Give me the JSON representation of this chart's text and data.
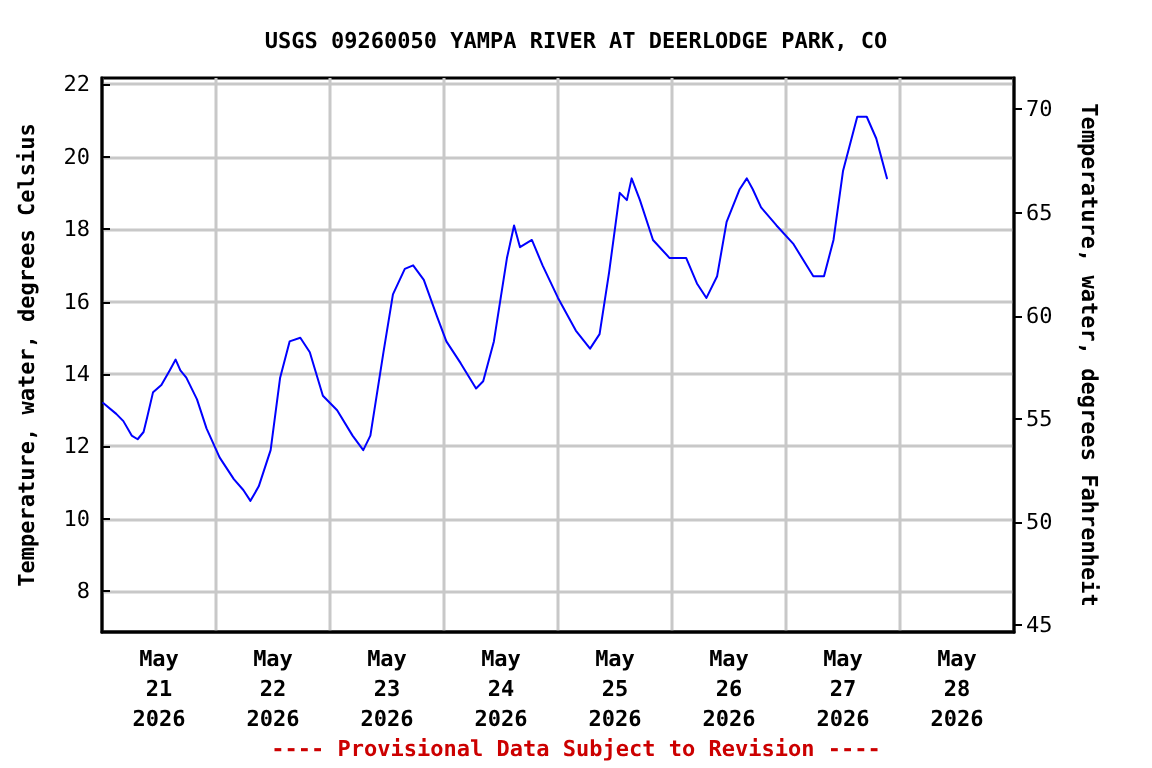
{
  "chart_data": {
    "type": "line",
    "title": "USGS 09260050 YAMPA RIVER AT DEERLODGE PARK, CO",
    "ylabel": "Temperature, water, degrees Celsius",
    "y2label": "Temperature, water, degrees Fahrenheit",
    "annotations": [
      "---- Provisional Data Subject to Revision ----"
    ],
    "x": [
      "2026-05-21T00:15",
      "2026-05-21T03:00",
      "2026-05-21T04:30",
      "2026-05-21T06:15",
      "2026-05-21T07:30",
      "2026-05-21T08:45",
      "2026-05-21T09:30",
      "2026-05-21T10:45",
      "2026-05-21T12:30",
      "2026-05-21T14:15",
      "2026-05-21T15:30",
      "2026-05-21T16:30",
      "2026-05-21T17:45",
      "2026-05-21T20:00",
      "2026-05-21T22:00",
      "2026-05-22T00:45",
      "2026-05-22T03:45",
      "2026-05-22T05:45",
      "2026-05-22T07:15",
      "2026-05-22T09:00",
      "2026-05-22T11:30",
      "2026-05-22T13:30",
      "2026-05-22T15:30",
      "2026-05-22T17:45",
      "2026-05-22T19:45",
      "2026-05-22T22:30",
      "2026-05-23T01:30",
      "2026-05-23T04:45",
      "2026-05-23T07:00",
      "2026-05-23T08:30",
      "2026-05-23T11:15",
      "2026-05-23T13:15",
      "2026-05-23T15:45",
      "2026-05-23T17:30",
      "2026-05-23T19:45",
      "2026-05-23T22:30",
      "2026-05-24T00:30",
      "2026-05-24T03:30",
      "2026-05-24T06:45",
      "2026-05-24T08:15",
      "2026-05-24T10:30",
      "2026-05-24T13:15",
      "2026-05-24T14:45",
      "2026-05-24T16:00",
      "2026-05-24T18:30",
      "2026-05-24T20:45",
      "2026-05-25T00:00",
      "2026-05-25T03:45",
      "2026-05-25T06:45",
      "2026-05-25T08:45",
      "2026-05-25T10:45",
      "2026-05-25T13:00",
      "2026-05-25T14:30",
      "2026-05-25T15:30",
      "2026-05-25T17:15",
      "2026-05-25T20:00",
      "2026-05-25T23:30",
      "2026-05-26T03:00",
      "2026-05-26T05:15",
      "2026-05-26T07:15",
      "2026-05-26T09:30",
      "2026-05-26T11:30",
      "2026-05-26T14:15",
      "2026-05-26T15:45",
      "2026-05-26T17:00",
      "2026-05-26T18:45",
      "2026-05-26T22:00",
      "2026-05-27T01:30",
      "2026-05-27T05:45",
      "2026-05-27T08:00",
      "2026-05-27T10:00",
      "2026-05-27T12:00",
      "2026-05-27T15:00",
      "2026-05-27T17:00",
      "2026-05-27T19:00",
      "2026-05-27T21:15"
    ],
    "series": [
      {
        "color": "#0000ff",
        "values": [
          13.2,
          12.9,
          12.7,
          12.3,
          12.2,
          12.4,
          12.8,
          13.5,
          13.7,
          14.1,
          14.4,
          14.1,
          13.9,
          13.3,
          12.5,
          11.7,
          11.1,
          10.8,
          10.5,
          10.9,
          11.9,
          13.9,
          14.9,
          15.0,
          14.6,
          13.4,
          13.0,
          12.3,
          11.9,
          12.3,
          14.6,
          16.2,
          16.9,
          17.0,
          16.6,
          15.6,
          14.9,
          14.3,
          13.6,
          13.8,
          14.9,
          17.2,
          18.1,
          17.5,
          17.7,
          17.0,
          16.1,
          15.2,
          14.7,
          15.1,
          16.8,
          19.0,
          18.8,
          19.4,
          18.8,
          17.7,
          17.2,
          17.2,
          16.5,
          16.1,
          16.7,
          18.2,
          19.1,
          19.4,
          19.1,
          18.6,
          18.1,
          17.6,
          16.7,
          16.7,
          17.7,
          19.6,
          21.1,
          21.1,
          20.5,
          19.4
        ]
      }
    ],
    "xlim": [
      "2026-05-21T00:00",
      "2026-05-29T00:00"
    ],
    "xticks": [
      {
        "value": "2026-05-21T00:00",
        "label": null
      },
      {
        "value": "2026-05-21T12:00",
        "label": "May\n21\n2026"
      },
      {
        "value": "2026-05-22T00:00",
        "label": null
      },
      {
        "value": "2026-05-22T12:00",
        "label": "May\n22\n2026"
      },
      {
        "value": "2026-05-23T00:00",
        "label": null
      },
      {
        "value": "2026-05-23T12:00",
        "label": "May\n23\n2026"
      },
      {
        "value": "2026-05-24T00:00",
        "label": null
      },
      {
        "value": "2026-05-24T12:00",
        "label": "May\n24\n2026"
      },
      {
        "value": "2026-05-25T00:00",
        "label": null
      },
      {
        "value": "2026-05-25T12:00",
        "label": "May\n25\n2026"
      },
      {
        "value": "2026-05-26T00:00",
        "label": null
      },
      {
        "value": "2026-05-26T12:00",
        "label": "May\n26\n2026"
      },
      {
        "value": "2026-05-27T00:00",
        "label": null
      },
      {
        "value": "2026-05-27T12:00",
        "label": "May\n27\n2026"
      },
      {
        "value": "2026-05-28T00:00",
        "label": null
      },
      {
        "value": "2026-05-28T12:00",
        "label": "May\n28\n2026"
      },
      {
        "value": "2026-05-29T00:00",
        "label": null
      }
    ],
    "ylim": [
      6.88,
      22.17
    ],
    "yticks": [
      8,
      10,
      12,
      14,
      16,
      18,
      20,
      22
    ],
    "y2lim": [
      44.68,
      71.52
    ],
    "y2ticks": [
      45,
      50,
      55,
      60,
      65,
      70
    ],
    "grid": true,
    "marker": "none",
    "line_style": "solid"
  }
}
